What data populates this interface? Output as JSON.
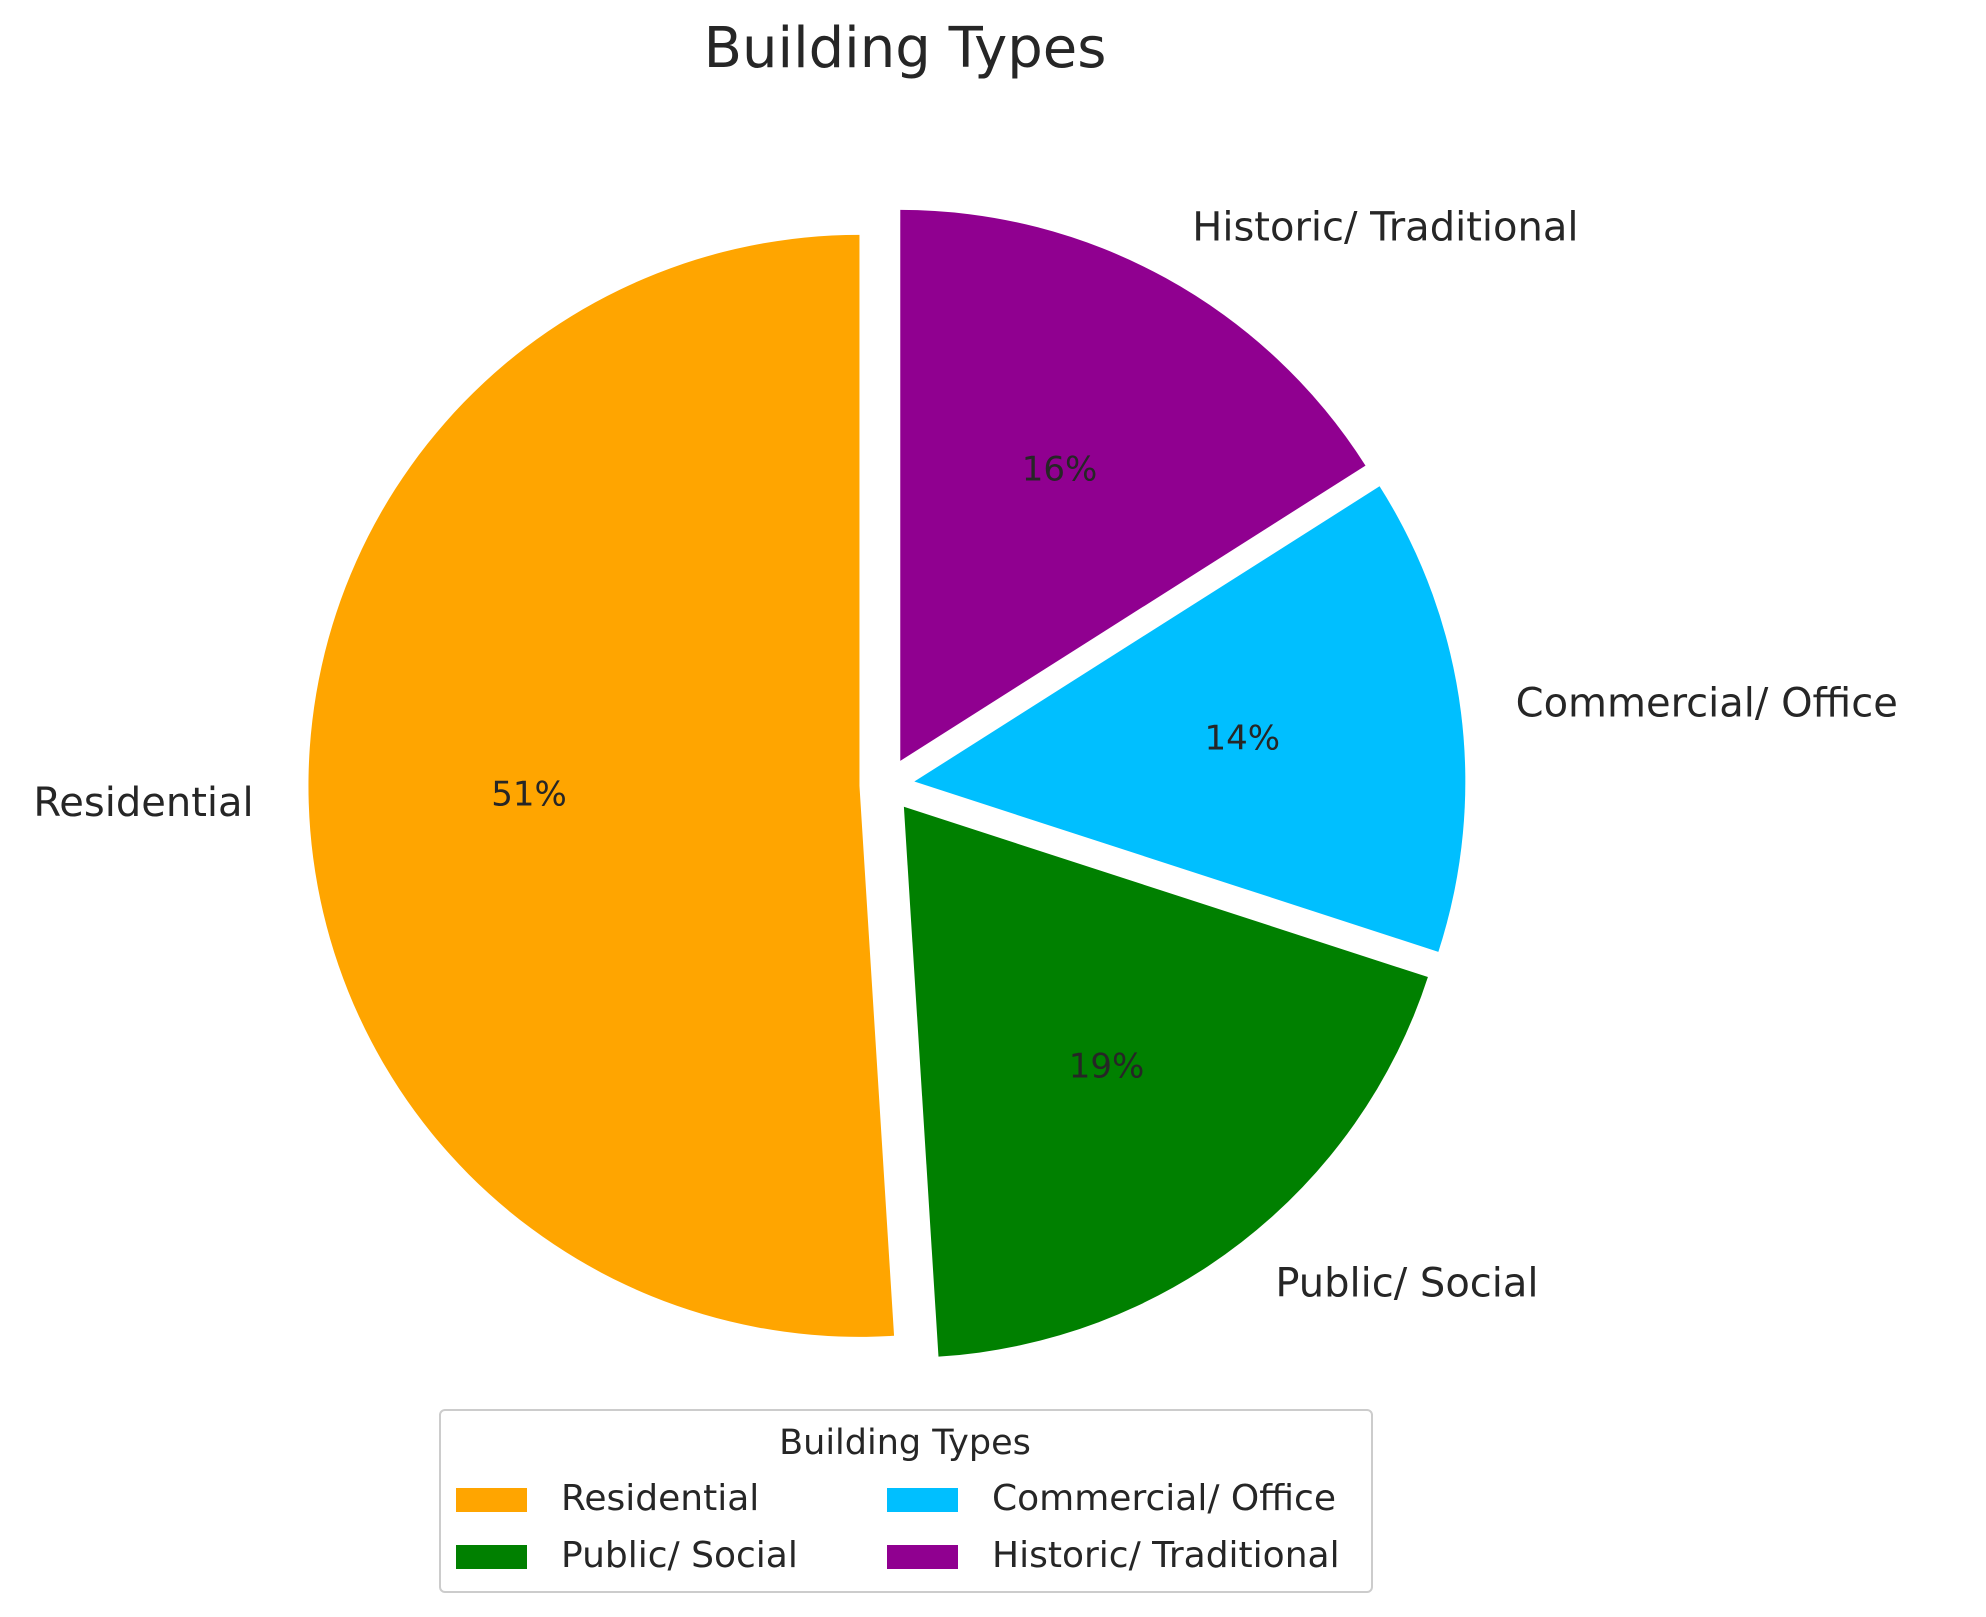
{
  "chart_data": {
    "type": "pie",
    "title": "Building Types",
    "legend_title": "Building Types",
    "categories": [
      "Residential",
      "Public/ Social",
      "Commercial/ Office",
      "Historic/ Traditional"
    ],
    "values": [
      51,
      19,
      14,
      16
    ],
    "value_labels": [
      "51%",
      "19%",
      "14%",
      "16%"
    ],
    "colors": [
      "#ffa500",
      "#008000",
      "#00bfff",
      "#900090"
    ],
    "legend": "lower center"
  }
}
